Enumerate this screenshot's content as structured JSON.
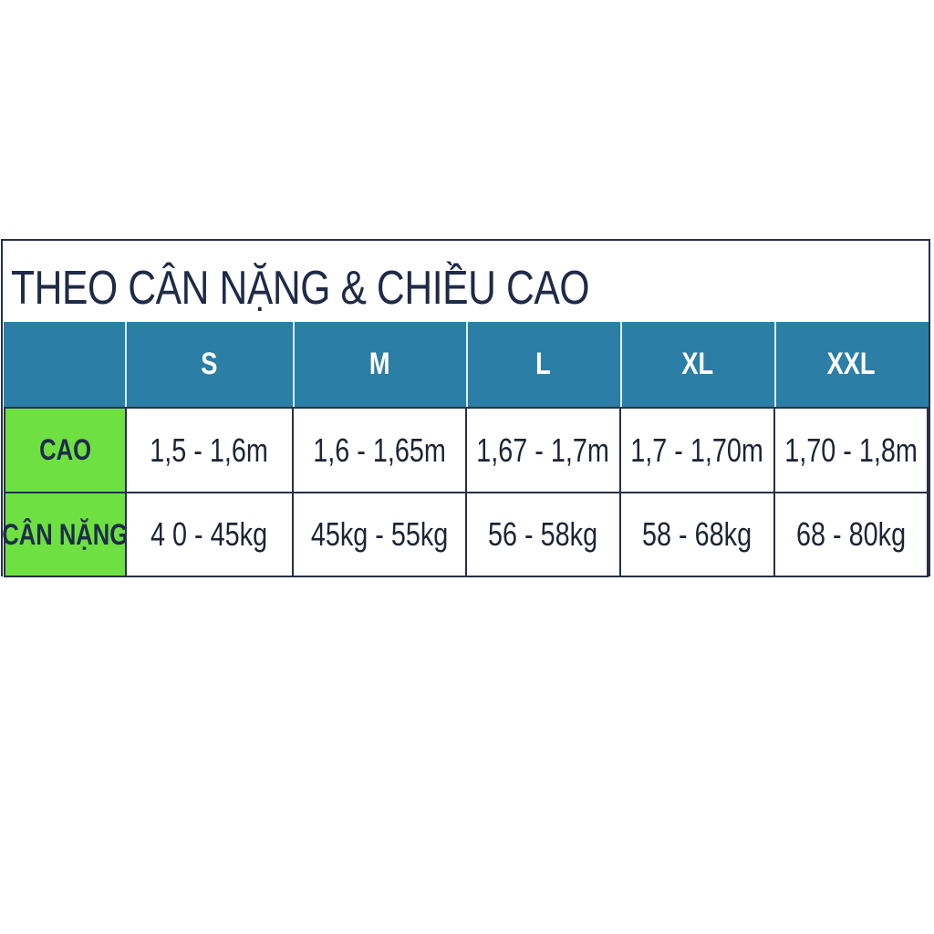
{
  "title": "THEO CÂN NẶNG & CHIỀU CAO",
  "colors": {
    "header_bg": "#2b7ea5",
    "label_bg": "#6ee042",
    "text": "#1d2c48"
  },
  "table": {
    "sizes": [
      "S",
      "M",
      "L",
      "XL",
      "XXL"
    ],
    "rows": [
      {
        "label": "CAO",
        "values": [
          "1,5 - 1,6m",
          "1,6 - 1,65m",
          "1,67 - 1,7m",
          "1,7 - 1,70m",
          "1,70 - 1,8m"
        ]
      },
      {
        "label": "CÂN NẶNG",
        "values": [
          "4 0 - 45kg",
          "45kg - 55kg",
          "56 - 58kg",
          "58 - 68kg",
          "68 - 80kg"
        ]
      }
    ]
  }
}
